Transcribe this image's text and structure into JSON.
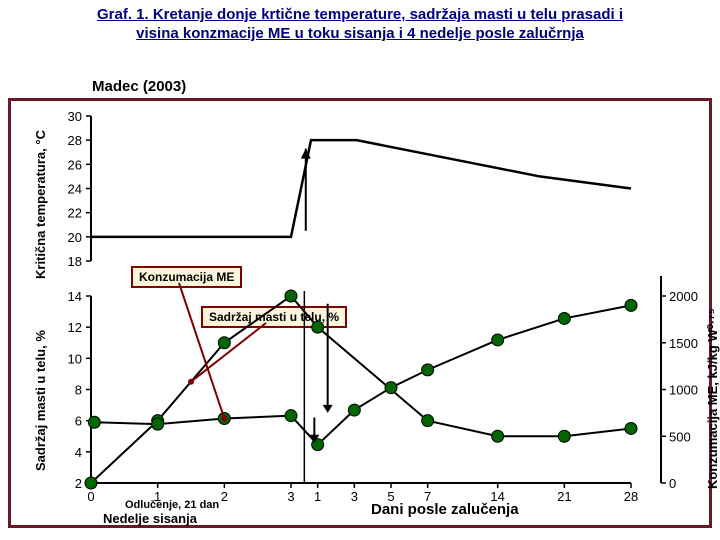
{
  "title_line1": "Graf. 1. Kretanje donje krtične temperature, sadržaja masti u telu prasadi i",
  "title_line2": "visina konzmacije ME u toku sisanja i 4 nedelje posle zalučrnja",
  "citation": "Madec (2003)",
  "y1_label": "Kritična temperatura, °C",
  "y2_label": "Sadržaj masti u telu, %",
  "y3_label": "Konzumacija ME, kJ/kg W⁰·⁷⁵",
  "x_left_top": "Odlučenje,  21 dan",
  "x_left_bottom": "Nedelje sisanja",
  "x_right": "Dani posle zalučenja",
  "callout_me": "Konzumacija ME",
  "callout_fat": "Sadržaj masti u telu, %",
  "top_panel": {
    "ylim": [
      18,
      30
    ],
    "yticks": [
      18,
      20,
      22,
      24,
      26,
      28,
      30
    ],
    "line": [
      [
        0,
        20
      ],
      [
        1,
        20
      ],
      [
        2,
        20
      ],
      [
        3,
        20
      ],
      [
        3.5,
        28
      ],
      [
        7,
        28
      ],
      [
        14,
        26.5
      ],
      [
        21,
        25
      ],
      [
        28,
        24
      ]
    ],
    "color": "#000000",
    "linewidth": 2.5
  },
  "bottom_panel": {
    "y_left": {
      "lim": [
        2,
        14
      ],
      "ticks": [
        2,
        4,
        6,
        8,
        10,
        12,
        14
      ]
    },
    "y_right": {
      "lim": [
        0,
        2000
      ],
      "ticks": [
        0,
        500,
        1000,
        1500,
        2000
      ]
    },
    "x_ticks_left": [
      0,
      1,
      2,
      3
    ],
    "x_ticks_right_labels": [
      "1",
      "3",
      "5",
      "7",
      "14",
      "21",
      "28"
    ],
    "x_ticks_right_pos": [
      3.4,
      3.95,
      4.5,
      5.05,
      6.1,
      7.1,
      8.1
    ],
    "fat_series": {
      "x": [
        0,
        1,
        2,
        3,
        3.4,
        5.05,
        6.1,
        7.1,
        8.1
      ],
      "y": [
        2,
        6,
        11,
        14,
        12,
        6,
        5,
        5,
        5.5
      ],
      "color": "#000000",
      "marker_fill": "#006600",
      "marker_size": 6,
      "linewidth": 2
    },
    "me_series": {
      "x": [
        0.05,
        1,
        2,
        3,
        3.4,
        3.95,
        4.5,
        5.05,
        6.1,
        7.1,
        8.1
      ],
      "y_right": [
        650,
        630,
        690,
        720,
        410,
        780,
        1020,
        1210,
        1530,
        1760,
        1900
      ],
      "color": "#000000",
      "marker_fill": "#006600",
      "marker_size": 6,
      "linewidth": 2
    },
    "vline_x": 3.2
  },
  "colors": {
    "frame": "#6a1825",
    "callout_border": "#800000",
    "callout_bg": "#faf6dc",
    "title": "#000080",
    "arrow": "#800000"
  }
}
